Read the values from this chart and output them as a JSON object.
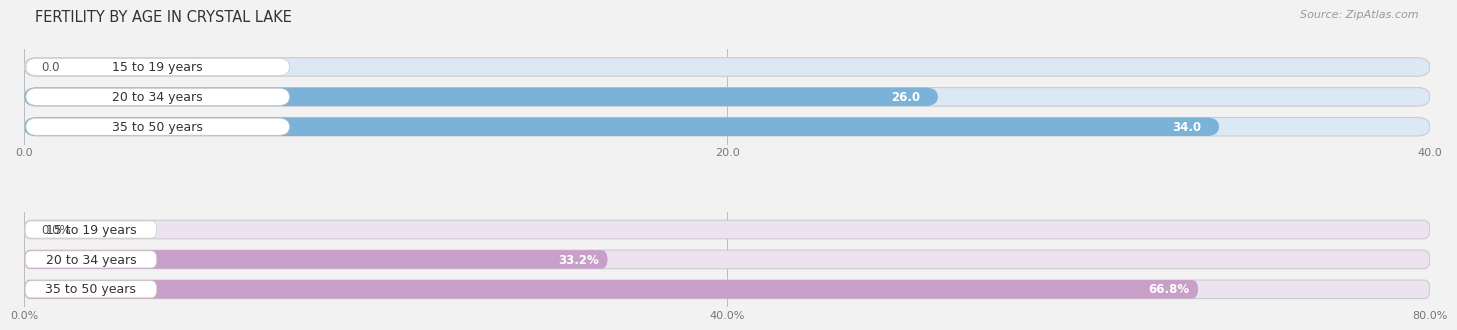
{
  "title": "FERTILITY BY AGE IN CRYSTAL LAKE",
  "source": "Source: ZipAtlas.com",
  "top_section": {
    "categories": [
      "15 to 19 years",
      "20 to 34 years",
      "35 to 50 years"
    ],
    "values": [
      0.0,
      26.0,
      34.0
    ],
    "max_value": 40.0,
    "x_ticks": [
      0.0,
      20.0,
      40.0
    ],
    "bar_color": "#7ab2d8",
    "bar_bg_color": "#dce8f4",
    "label_bg_color": "#ffffff"
  },
  "bottom_section": {
    "categories": [
      "15 to 19 years",
      "20 to 34 years",
      "35 to 50 years"
    ],
    "values": [
      0.0,
      33.2,
      66.8
    ],
    "max_value": 80.0,
    "x_ticks": [
      0.0,
      40.0,
      80.0
    ],
    "bar_color": "#c89fc8",
    "bar_bg_color": "#ede3f0",
    "label_bg_color": "#ffffff"
  },
  "bg_color": "#f2f2f2",
  "title_fontsize": 10.5,
  "source_fontsize": 8,
  "value_fontsize": 8.5,
  "tick_fontsize": 8,
  "cat_label_fontsize": 9
}
